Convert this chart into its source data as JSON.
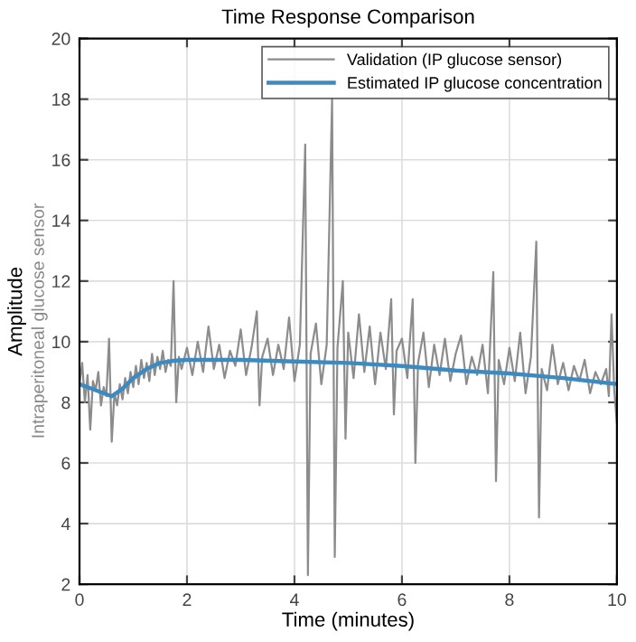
{
  "chart_data": {
    "type": "line",
    "title": "Time Response Comparison",
    "xlabel": "Time (minutes)",
    "ylabel": "Amplitude",
    "annotations": [
      "Intraperitoneal glucose sensor"
    ],
    "xlim": [
      0,
      10
    ],
    "ylim": [
      2,
      20
    ],
    "xticks": [
      0,
      2,
      4,
      6,
      8,
      10
    ],
    "yticks": [
      2,
      4,
      6,
      8,
      10,
      12,
      14,
      16,
      18,
      20
    ],
    "grid": true,
    "legend": "top right",
    "marker": "none",
    "line_style": "solid",
    "series": [
      {
        "name": "Validation (IP glucose sensor)",
        "color": "#8c8c8c",
        "x": [
          0,
          0.05,
          0.1,
          0.15,
          0.2,
          0.25,
          0.3,
          0.35,
          0.4,
          0.45,
          0.5,
          0.55,
          0.6,
          0.65,
          0.7,
          0.75,
          0.8,
          0.85,
          0.9,
          0.95,
          1.0,
          1.05,
          1.1,
          1.15,
          1.2,
          1.25,
          1.3,
          1.35,
          1.4,
          1.45,
          1.5,
          1.55,
          1.6,
          1.65,
          1.7,
          1.75,
          1.8,
          1.85,
          1.9,
          2.0,
          2.1,
          2.2,
          2.3,
          2.4,
          2.5,
          2.6,
          2.7,
          2.8,
          2.9,
          3.0,
          3.1,
          3.2,
          3.3,
          3.35,
          3.4,
          3.5,
          3.6,
          3.7,
          3.8,
          3.9,
          4.0,
          4.1,
          4.2,
          4.25,
          4.3,
          4.4,
          4.5,
          4.6,
          4.7,
          4.75,
          4.8,
          4.9,
          4.95,
          5.0,
          5.1,
          5.2,
          5.3,
          5.4,
          5.5,
          5.6,
          5.7,
          5.8,
          5.85,
          5.9,
          6.0,
          6.1,
          6.2,
          6.25,
          6.3,
          6.4,
          6.5,
          6.6,
          6.7,
          6.8,
          6.9,
          7.0,
          7.1,
          7.2,
          7.3,
          7.4,
          7.5,
          7.6,
          7.7,
          7.75,
          7.8,
          7.9,
          8.0,
          8.1,
          8.2,
          8.3,
          8.4,
          8.5,
          8.55,
          8.6,
          8.7,
          8.8,
          8.9,
          9.0,
          9.1,
          9.2,
          9.3,
          9.4,
          9.5,
          9.6,
          9.7,
          9.8,
          9.85,
          9.9,
          9.95,
          10.0
        ],
        "values": [
          8.6,
          9.3,
          8.0,
          8.9,
          7.1,
          8.7,
          8.4,
          9.0,
          7.9,
          8.5,
          8.2,
          10.1,
          6.7,
          8.3,
          7.9,
          8.6,
          8.1,
          8.8,
          8.3,
          9.0,
          8.5,
          9.2,
          8.6,
          9.4,
          8.8,
          9.3,
          8.7,
          9.6,
          8.9,
          9.5,
          9.1,
          9.7,
          9.0,
          9.4,
          9.2,
          12.0,
          8.0,
          9.5,
          9.1,
          9.8,
          8.9,
          10.0,
          9.0,
          10.5,
          9.1,
          9.9,
          8.8,
          9.7,
          9.2,
          10.4,
          8.9,
          9.8,
          11.0,
          7.9,
          9.5,
          10.1,
          8.9,
          9.9,
          9.1,
          10.8,
          8.7,
          9.9,
          16.5,
          2.3,
          9.6,
          10.6,
          8.6,
          9.9,
          18.0,
          2.9,
          9.8,
          12.0,
          6.8,
          10.3,
          8.8,
          10.9,
          9.0,
          10.5,
          8.6,
          10.3,
          9.1,
          11.4,
          7.6,
          9.7,
          10.1,
          8.8,
          11.4,
          6.0,
          9.3,
          10.3,
          8.5,
          9.9,
          8.9,
          10.1,
          8.7,
          9.6,
          10.2,
          8.6,
          9.5,
          8.9,
          9.9,
          8.3,
          12.3,
          5.4,
          9.4,
          8.6,
          9.8,
          8.7,
          10.3,
          8.3,
          9.5,
          13.3,
          4.2,
          9.1,
          8.4,
          9.9,
          8.6,
          9.3,
          8.4,
          9.2,
          8.7,
          9.4,
          8.3,
          9.0,
          8.6,
          9.1,
          8.2,
          10.9,
          8.4,
          7.3
        ]
      },
      {
        "name": "Estimated IP glucose concentration",
        "color": "#3b8bc2",
        "x": [
          0,
          0.3,
          0.6,
          0.8,
          1.0,
          1.25,
          1.5,
          1.75,
          2,
          3,
          4,
          5,
          6,
          7,
          8,
          9,
          10
        ],
        "values": [
          8.6,
          8.4,
          8.2,
          8.45,
          8.8,
          9.1,
          9.3,
          9.37,
          9.4,
          9.4,
          9.35,
          9.3,
          9.2,
          9.05,
          8.95,
          8.8,
          8.6
        ]
      }
    ]
  }
}
